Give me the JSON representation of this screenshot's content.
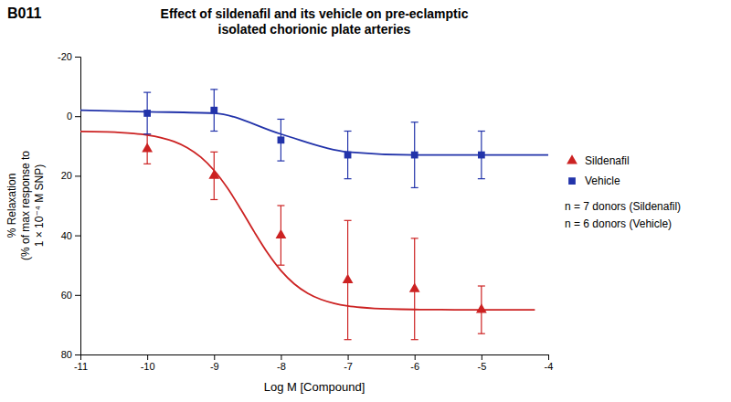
{
  "chart_data": {
    "type": "scatter",
    "title": [
      "Effect of sildenafil and its vehicle on pre-eclamptic",
      "isolated chorionic plate arteries"
    ],
    "x_label": "Log M [Compound]",
    "y_label": [
      "% Relaxation",
      "(% of max response to",
      "1 × 10⁻⁴ M SNP)"
    ],
    "annotations": [
      "B011",
      "n = 7 donors (Sildenafil)",
      "n = 6 donors (Vehicle)"
    ],
    "xlim": [
      -11,
      -4
    ],
    "ylim": [
      80,
      -20
    ],
    "xticks": [
      -11,
      -10,
      -9,
      -8,
      -7,
      -6,
      -5,
      -4
    ],
    "yticks": [
      -20,
      0,
      20,
      40,
      60,
      80
    ],
    "grid": false,
    "legend": "right",
    "series": [
      {
        "name": "Sildenafil",
        "type": "scatter",
        "marker": "triangle",
        "color": "#cc2222",
        "x": [
          -10,
          -9,
          -8,
          -7,
          -6,
          -5
        ],
        "values": [
          11,
          20,
          40,
          55,
          58,
          65
        ],
        "error_low": [
          5,
          8,
          10,
          20,
          17,
          8
        ],
        "error_high": [
          5,
          8,
          10,
          20,
          17,
          8
        ]
      },
      {
        "name": "Vehicle",
        "type": "scatter",
        "marker": "square",
        "color": "#2233aa",
        "x": [
          -10,
          -9,
          -8,
          -7,
          -6,
          -5
        ],
        "values": [
          -1,
          -2,
          8,
          13,
          13,
          13
        ],
        "error_low": [
          7,
          7,
          7,
          8,
          11,
          8
        ],
        "error_high": [
          7,
          7,
          7,
          8,
          11,
          8
        ]
      },
      {
        "type": "line",
        "color": "#cc2222",
        "x": [
          -11,
          -10.8,
          -10.6,
          -10.4,
          -10.2,
          -10,
          -9.8,
          -9.6,
          -9.4,
          -9.2,
          -9,
          -8.8,
          -8.6,
          -8.4,
          -8.2,
          -8,
          -7.8,
          -7.6,
          -7.4,
          -7.2,
          -7,
          -6.8,
          -6.6,
          -6.4,
          -6.2,
          -6,
          -5.8,
          -5.6,
          -5.4,
          -5.2,
          -5,
          -4.8,
          -4.6,
          -4.4,
          -4.2
        ],
        "values": [
          5.11,
          5.18,
          5.29,
          5.48,
          5.8,
          6.31,
          7.15,
          8.48,
          10.57,
          13.71,
          18.19,
          24.12,
          31.22,
          38.78,
          45.88,
          51.81,
          56.29,
          59.43,
          61.52,
          62.85,
          63.69,
          64.2,
          64.52,
          64.71,
          64.82,
          64.89,
          64.94,
          64.96,
          64.98,
          64.99,
          64.99,
          64.99,
          65,
          65,
          65
        ]
      },
      {
        "type": "line",
        "color": "#2233aa",
        "x": [
          -11,
          -10,
          -9,
          -8,
          -7,
          -6,
          -5,
          -4
        ],
        "values": [
          -2,
          -1.5,
          -1,
          6,
          12,
          13,
          13,
          13
        ]
      }
    ]
  }
}
